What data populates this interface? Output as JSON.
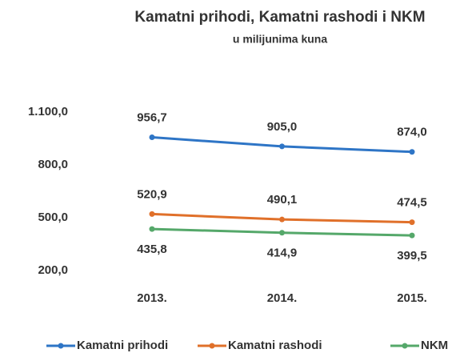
{
  "chart_data": {
    "type": "line",
    "title": "Kamatni prihodi, Kamatni rashodi i NKM",
    "subtitle": "u milijunima kuna",
    "categories": [
      "2013.",
      "2014.",
      "2015."
    ],
    "series": [
      {
        "name": "Kamatni prihodi",
        "color": "#2e75c6",
        "values": [
          956.7,
          905.0,
          874.0
        ],
        "value_labels": [
          "956,7",
          "905,0",
          "874,0"
        ]
      },
      {
        "name": "Kamatni rashodi",
        "color": "#e0702a",
        "values": [
          520.9,
          490.1,
          474.5
        ],
        "value_labels": [
          "520,9",
          "490,1",
          "474,5"
        ]
      },
      {
        "name": "NKM",
        "color": "#55a86a",
        "values": [
          435.8,
          414.9,
          399.5
        ],
        "value_labels": [
          "435,8",
          "414,9",
          "399,5"
        ]
      }
    ],
    "ylim": [
      200,
      1100
    ],
    "yticks": [
      {
        "value": 200,
        "label": "200,0"
      },
      {
        "value": 500,
        "label": "500,0"
      },
      {
        "value": 800,
        "label": "800,0"
      },
      {
        "value": 1100,
        "label": "1.100,0"
      }
    ],
    "grid": false,
    "legend": "bottom"
  }
}
